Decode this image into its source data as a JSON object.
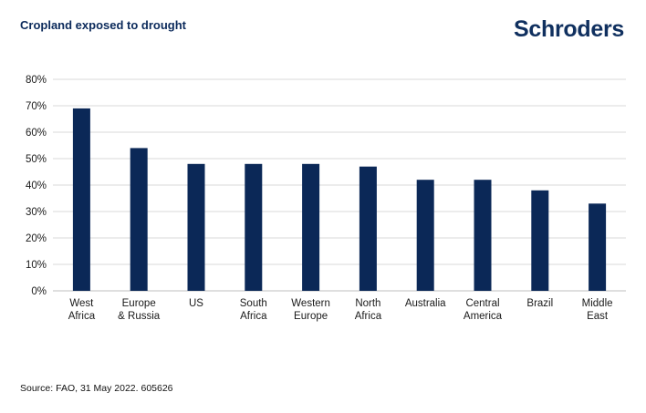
{
  "header": {
    "title": "Cropland exposed to drought",
    "logo_text": "Schroders"
  },
  "footer": {
    "source": "Source: FAO, 31 May 2022.  605626"
  },
  "colors": {
    "bar": "#0b2857",
    "grid": "#d9d9d9",
    "title": "#0b2a5b"
  },
  "chart_data": {
    "type": "bar",
    "categories": [
      [
        "West",
        "Africa"
      ],
      [
        "Europe",
        "& Russia"
      ],
      [
        "US"
      ],
      [
        "South",
        "Africa"
      ],
      [
        "Western",
        "Europe"
      ],
      [
        "North",
        "Africa"
      ],
      [
        "Australia"
      ],
      [
        "Central",
        "America"
      ],
      [
        "Brazil"
      ],
      [
        "Middle",
        "East"
      ]
    ],
    "values": [
      69,
      54,
      48,
      48,
      48,
      47,
      42,
      42,
      38,
      33
    ],
    "yticks": [
      "0%",
      "10%",
      "20%",
      "30%",
      "40%",
      "50%",
      "60%",
      "70%",
      "80%"
    ],
    "ylim": [
      0,
      80
    ],
    "grid": true,
    "legend": "none"
  }
}
